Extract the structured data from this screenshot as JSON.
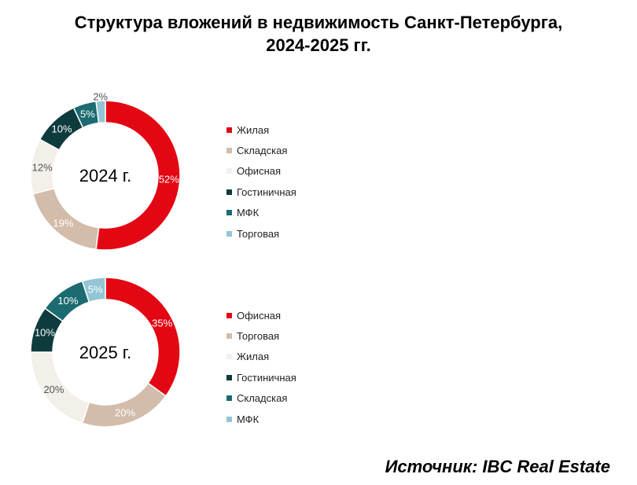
{
  "title_line1": "Структура вложений в недвижимость Санкт-Петербурга,",
  "title_line2": "2024-2025 гг.",
  "source": "Источник: IBC Real Estate",
  "colors": {
    "red": "#e30613",
    "tan": "#d3bcaa",
    "offwhite": "#f3efe9",
    "darkteal": "#0e3b3d",
    "teal": "#1b6b70",
    "lightblue": "#93c5d5"
  },
  "chart_data": [
    {
      "type": "donut",
      "center_label": "2024 г.",
      "series": [
        {
          "name": "Жилая",
          "value": 52,
          "label": "52%",
          "color": "#e30613",
          "label_color": "#ffffff"
        },
        {
          "name": "Складская",
          "value": 19,
          "label": "19%",
          "color": "#d3bcaa",
          "label_color": "#ffffff"
        },
        {
          "name": "Офисная",
          "value": 12,
          "label": "12%",
          "color": "#f3efe9",
          "label_color": "#555555"
        },
        {
          "name": "Гостиничная",
          "value": 10,
          "label": "10%",
          "color": "#0e3b3d",
          "label_color": "#ffffff"
        },
        {
          "name": "МФК",
          "value": 5,
          "label": "5%",
          "color": "#1b6b70",
          "label_color": "#ffffff"
        },
        {
          "name": "Торговая",
          "value": 2,
          "label": "2%",
          "color": "#93c5d5",
          "label_color": "#555555"
        }
      ]
    },
    {
      "type": "donut",
      "center_label": "2025 г.",
      "series": [
        {
          "name": "Офисная",
          "value": 35,
          "label": "35%",
          "color": "#e30613",
          "label_color": "#ffffff"
        },
        {
          "name": "Торговая",
          "value": 20,
          "label": "20%",
          "color": "#d3bcaa",
          "label_color": "#ffffff"
        },
        {
          "name": "Жилая",
          "value": 20,
          "label": "20%",
          "color": "#f3efe9",
          "label_color": "#555555"
        },
        {
          "name": "Гостиничная",
          "value": 10,
          "label": "10%",
          "color": "#0e3b3d",
          "label_color": "#ffffff"
        },
        {
          "name": "Складская",
          "value": 10,
          "label": "10%",
          "color": "#1b6b70",
          "label_color": "#ffffff"
        },
        {
          "name": "МФК",
          "value": 5,
          "label": "5%",
          "color": "#93c5d5",
          "label_color": "#ffffff"
        }
      ]
    }
  ]
}
